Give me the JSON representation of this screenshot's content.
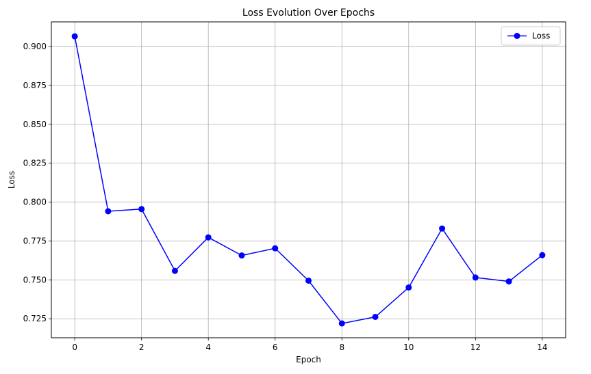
{
  "chart_data": {
    "type": "line",
    "title": "Loss Evolution Over Epochs",
    "xlabel": "Epoch",
    "ylabel": "Loss",
    "xlim": [
      -0.7,
      14.7
    ],
    "ylim": [
      0.7128,
      0.9158
    ],
    "grid": true,
    "legend": {
      "placement": "top-right",
      "entries": [
        "Loss"
      ]
    },
    "xticks": [
      0,
      2,
      4,
      6,
      8,
      10,
      12,
      14
    ],
    "xtick_labels": [
      "0",
      "2",
      "4",
      "6",
      "8",
      "10",
      "12",
      "14"
    ],
    "yticks": [
      0.725,
      0.75,
      0.775,
      0.8,
      0.825,
      0.85,
      0.875,
      0.9
    ],
    "ytick_labels": [
      "0.725",
      "0.750",
      "0.775",
      "0.800",
      "0.825",
      "0.850",
      "0.875",
      "0.900"
    ],
    "series": [
      {
        "name": "Loss",
        "color": "#0000ff",
        "marker": "circle",
        "x": [
          0,
          1,
          2,
          3,
          4,
          5,
          6,
          7,
          8,
          9,
          10,
          11,
          12,
          13,
          14
        ],
        "values": [
          0.9065,
          0.7941,
          0.7955,
          0.7558,
          0.7773,
          0.7657,
          0.7703,
          0.7495,
          0.722,
          0.7262,
          0.7451,
          0.783,
          0.7515,
          0.749,
          0.7659
        ]
      }
    ]
  }
}
